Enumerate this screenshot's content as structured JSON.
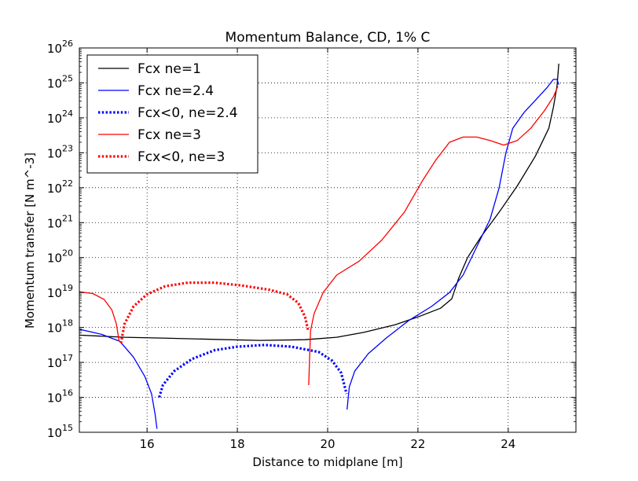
{
  "chart_data": {
    "type": "line",
    "title": "Momentum Balance, CD, 1% C",
    "xlabel": "Distance to midplane [m]",
    "ylabel": "Momentum transfer [N m^-3]",
    "xlim": [
      14.5,
      25.5
    ],
    "ylim_exponent": [
      15,
      26
    ],
    "yscale": "log",
    "grid": true,
    "legend_position": "top-left",
    "x_ticks": [
      "16",
      "18",
      "20",
      "22",
      "24"
    ],
    "y_ticks": [
      {
        "base": "10",
        "exp": "15"
      },
      {
        "base": "10",
        "exp": "16"
      },
      {
        "base": "10",
        "exp": "17"
      },
      {
        "base": "10",
        "exp": "18"
      },
      {
        "base": "10",
        "exp": "19"
      },
      {
        "base": "10",
        "exp": "20"
      },
      {
        "base": "10",
        "exp": "21"
      },
      {
        "base": "10",
        "exp": "22"
      },
      {
        "base": "10",
        "exp": "23"
      },
      {
        "base": "10",
        "exp": "24"
      },
      {
        "base": "10",
        "exp": "25"
      },
      {
        "base": "10",
        "exp": "26"
      }
    ],
    "series": [
      {
        "name": "Fcx ne=1",
        "color": "#000000",
        "style": "solid",
        "points": [
          [
            14.5,
            17.78
          ],
          [
            15.5,
            17.72
          ],
          [
            16.5,
            17.69
          ],
          [
            17.5,
            17.66
          ],
          [
            18.5,
            17.63
          ],
          [
            19.5,
            17.65
          ],
          [
            20.2,
            17.72
          ],
          [
            20.8,
            17.86
          ],
          [
            21.5,
            18.08
          ],
          [
            22.0,
            18.3
          ],
          [
            22.5,
            18.55
          ],
          [
            22.75,
            18.82
          ],
          [
            22.9,
            19.4
          ],
          [
            23.1,
            20.0
          ],
          [
            23.4,
            20.6
          ],
          [
            23.8,
            21.3
          ],
          [
            24.2,
            22.05
          ],
          [
            24.6,
            22.9
          ],
          [
            24.9,
            23.7
          ],
          [
            25.0,
            24.3
          ],
          [
            25.08,
            24.9
          ],
          [
            25.12,
            25.55
          ]
        ]
      },
      {
        "name": "Fcx ne=2.4",
        "color": "#0000ff",
        "style": "solid",
        "points": [
          [
            14.5,
            17.95
          ],
          [
            15.0,
            17.8
          ],
          [
            15.4,
            17.6
          ],
          [
            15.7,
            17.15
          ],
          [
            15.95,
            16.6
          ],
          [
            16.1,
            16.1
          ],
          [
            16.18,
            15.5
          ],
          [
            16.22,
            15.1
          ]
        ]
      },
      {
        "name": "Fcx ne=2.4",
        "color": "#0000ff",
        "style": "solid",
        "points": [
          [
            20.43,
            15.65
          ],
          [
            20.48,
            16.3
          ],
          [
            20.6,
            16.75
          ],
          [
            20.9,
            17.25
          ],
          [
            21.3,
            17.7
          ],
          [
            21.8,
            18.2
          ],
          [
            22.3,
            18.6
          ],
          [
            22.7,
            19.0
          ],
          [
            23.0,
            19.5
          ],
          [
            23.3,
            20.3
          ],
          [
            23.6,
            21.1
          ],
          [
            23.8,
            22.0
          ],
          [
            23.95,
            23.0
          ],
          [
            24.1,
            23.7
          ],
          [
            24.35,
            24.15
          ],
          [
            24.6,
            24.5
          ],
          [
            24.85,
            24.85
          ],
          [
            25.0,
            25.1
          ],
          [
            25.08,
            25.1
          ],
          [
            25.12,
            24.95
          ]
        ]
      },
      {
        "name": "Fcx<0, ne=2.4",
        "color": "#0000ff",
        "style": "dotted",
        "points": [
          [
            16.27,
            16.0
          ],
          [
            16.35,
            16.35
          ],
          [
            16.6,
            16.75
          ],
          [
            17.0,
            17.1
          ],
          [
            17.5,
            17.35
          ],
          [
            18.0,
            17.45
          ],
          [
            18.6,
            17.5
          ],
          [
            19.2,
            17.45
          ],
          [
            19.8,
            17.3
          ],
          [
            20.1,
            17.05
          ],
          [
            20.3,
            16.7
          ],
          [
            20.42,
            16.1
          ]
        ]
      },
      {
        "name": "Fcx ne=3",
        "color": "#ff0000",
        "style": "solid",
        "points": [
          [
            14.5,
            19.02
          ],
          [
            14.8,
            18.97
          ],
          [
            15.05,
            18.8
          ],
          [
            15.22,
            18.5
          ],
          [
            15.32,
            18.1
          ],
          [
            15.38,
            17.6
          ]
        ]
      },
      {
        "name": "Fcx ne=3",
        "color": "#ff0000",
        "style": "solid",
        "points": [
          [
            19.58,
            16.35
          ],
          [
            19.62,
            17.9
          ],
          [
            19.7,
            18.4
          ],
          [
            19.9,
            19.0
          ],
          [
            20.2,
            19.5
          ],
          [
            20.7,
            19.9
          ],
          [
            21.2,
            20.5
          ],
          [
            21.7,
            21.3
          ],
          [
            22.1,
            22.2
          ],
          [
            22.4,
            22.8
          ],
          [
            22.7,
            23.3
          ],
          [
            23.0,
            23.45
          ],
          [
            23.3,
            23.45
          ],
          [
            23.6,
            23.35
          ],
          [
            23.9,
            23.22
          ],
          [
            24.2,
            23.35
          ],
          [
            24.5,
            23.7
          ],
          [
            24.8,
            24.2
          ],
          [
            25.0,
            24.6
          ],
          [
            25.1,
            24.9
          ]
        ]
      },
      {
        "name": "Fcx<0, ne=3",
        "color": "#ff0000",
        "style": "dotted",
        "points": [
          [
            15.42,
            17.55
          ],
          [
            15.5,
            18.1
          ],
          [
            15.7,
            18.6
          ],
          [
            16.0,
            18.95
          ],
          [
            16.4,
            19.18
          ],
          [
            16.9,
            19.28
          ],
          [
            17.5,
            19.28
          ],
          [
            18.1,
            19.2
          ],
          [
            18.7,
            19.08
          ],
          [
            19.1,
            18.95
          ],
          [
            19.35,
            18.7
          ],
          [
            19.5,
            18.3
          ],
          [
            19.57,
            17.9
          ]
        ]
      }
    ],
    "legend": [
      {
        "label": "Fcx ne=1",
        "color": "#000000",
        "style": "solid"
      },
      {
        "label": "Fcx ne=2.4",
        "color": "#0000ff",
        "style": "solid"
      },
      {
        "label": "Fcx<0, ne=2.4",
        "color": "#0000ff",
        "style": "dotted"
      },
      {
        "label": "Fcx ne=3",
        "color": "#ff0000",
        "style": "solid"
      },
      {
        "label": "Fcx<0, ne=3",
        "color": "#ff0000",
        "style": "dotted"
      }
    ]
  }
}
